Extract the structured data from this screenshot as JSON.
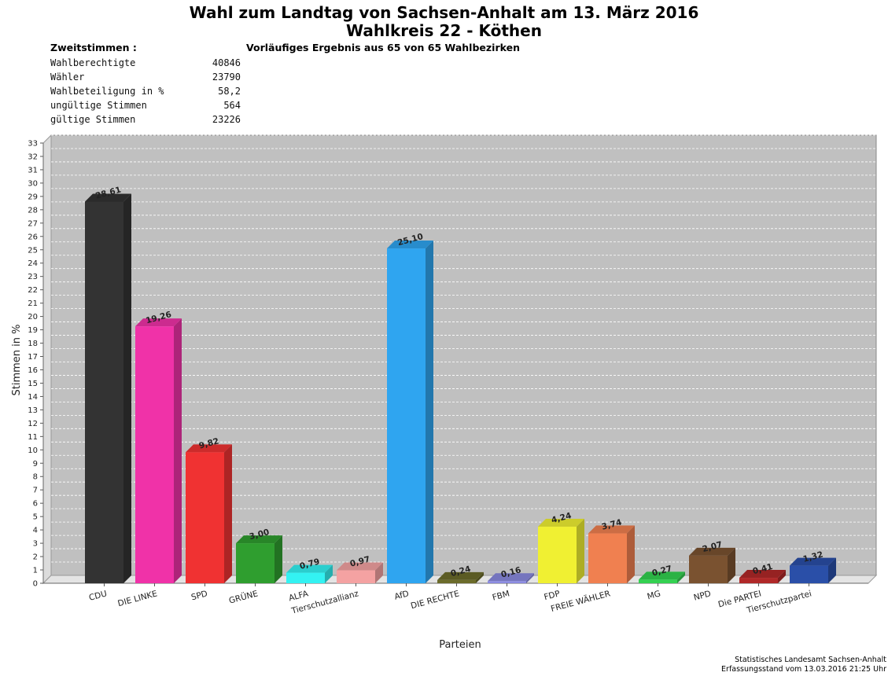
{
  "header": {
    "title": "Wahl zum Landtag von Sachsen-Anhalt am 13. März 2016",
    "subtitle": "Wahlkreis 22 - Köthen"
  },
  "stats": {
    "heading": "Zweitstimmen :",
    "progress": "Vorläufiges Ergebnis aus 65 von 65 Wahlbezirken",
    "rows": [
      {
        "label": "Wahlberechtigte",
        "value": "40846"
      },
      {
        "label": "Wähler",
        "value": "23790"
      },
      {
        "label": "Wahlbeteiligung in %",
        "value": "58,2"
      },
      {
        "label": "ungültige Stimmen",
        "value": "564"
      },
      {
        "label": "gültige Stimmen",
        "value": "23226"
      }
    ]
  },
  "chart_data": {
    "type": "bar",
    "ylabel": "Stimmen in %",
    "xlabel": "Parteien",
    "ylim": [
      0,
      33
    ],
    "ytick_step": 1,
    "grid": true,
    "categories": [
      "CDU",
      "DIE LINKE",
      "SPD",
      "GRÜNE",
      "ALFA",
      "Tierschutzallianz",
      "AfD",
      "DIE RECHTE",
      "FBM",
      "FDP",
      "FREIE WÄHLER",
      "MG",
      "NPD",
      "Die PARTEI",
      "Tierschutzpartei"
    ],
    "values": [
      28.61,
      19.26,
      9.82,
      3.0,
      0.79,
      0.97,
      25.1,
      0.24,
      0.16,
      4.24,
      3.74,
      0.27,
      2.07,
      0.41,
      1.32
    ],
    "value_labels": [
      "28,61",
      "19,26",
      "9,82",
      "3,00",
      "0,79",
      "0,97",
      "25,10",
      "0,24",
      "0,16",
      "4,24",
      "3,74",
      "0,27",
      "2,07",
      "0,41",
      "1,32"
    ],
    "colors": [
      "#333333",
      "#f032a8",
      "#f03232",
      "#2f9e2f",
      "#33f2f2",
      "#f4a2a2",
      "#2fa5f0",
      "#6b6b2a",
      "#8a8ae0",
      "#f0f032",
      "#f08050",
      "#33d150",
      "#7a5230",
      "#b02828",
      "#2a4fa8"
    ]
  },
  "footer": {
    "source": "Statistisches Landesamt Sachsen-Anhalt",
    "timestamp": "Erfassungsstand vom 13.03.2016 21:25 Uhr"
  }
}
